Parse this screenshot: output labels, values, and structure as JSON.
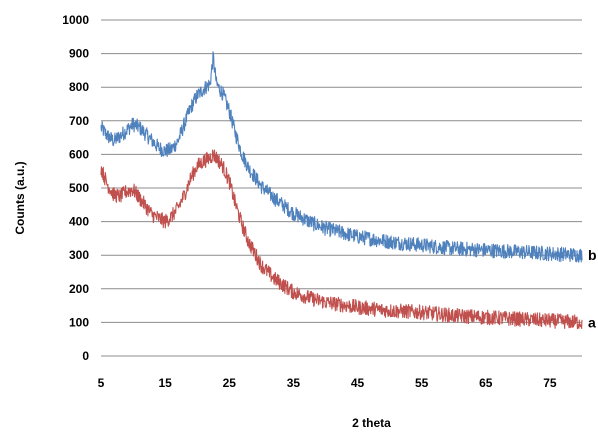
{
  "chart_data": {
    "type": "line",
    "title": "",
    "xlabel": "2 theta",
    "ylabel": "Counts (a.u.)",
    "xlim": [
      5,
      80
    ],
    "ylim": [
      0,
      1000
    ],
    "xticks": [
      5,
      15,
      25,
      35,
      45,
      55,
      65,
      75
    ],
    "yticks": [
      0,
      100,
      200,
      300,
      400,
      500,
      600,
      700,
      800,
      900,
      1000
    ],
    "grid": "horizontal",
    "legend": "none",
    "series": [
      {
        "name": "b",
        "color": "#4f81bd",
        "x": [
          5,
          6,
          7,
          8,
          9,
          10,
          11,
          12,
          13,
          14,
          15,
          16,
          17,
          18,
          19,
          20,
          21,
          22,
          22.5,
          23,
          24,
          25,
          26,
          27,
          28,
          30,
          32,
          35,
          38,
          40,
          45,
          50,
          55,
          60,
          65,
          70,
          75,
          80
        ],
        "values": [
          680,
          655,
          640,
          655,
          672,
          690,
          680,
          660,
          640,
          620,
          610,
          615,
          640,
          690,
          740,
          775,
          795,
          810,
          890,
          810,
          780,
          730,
          660,
          600,
          560,
          505,
          470,
          425,
          395,
          380,
          355,
          340,
          330,
          320,
          315,
          310,
          305,
          300
        ]
      },
      {
        "name": "a",
        "color": "#c0504d",
        "x": [
          5,
          6,
          7,
          8,
          9,
          10,
          11,
          12,
          13,
          14,
          15,
          16,
          17,
          18,
          19,
          20,
          21,
          22,
          22.5,
          23,
          24,
          25,
          26,
          27,
          28,
          30,
          32,
          35,
          38,
          40,
          45,
          50,
          55,
          60,
          65,
          70,
          75,
          80
        ],
        "values": [
          560,
          510,
          480,
          475,
          490,
          495,
          470,
          445,
          420,
          410,
          400,
          415,
          440,
          480,
          530,
          565,
          580,
          590,
          600,
          590,
          565,
          520,
          450,
          390,
          340,
          270,
          230,
          190,
          170,
          160,
          145,
          135,
          130,
          120,
          115,
          110,
          105,
          100
        ]
      }
    ]
  }
}
